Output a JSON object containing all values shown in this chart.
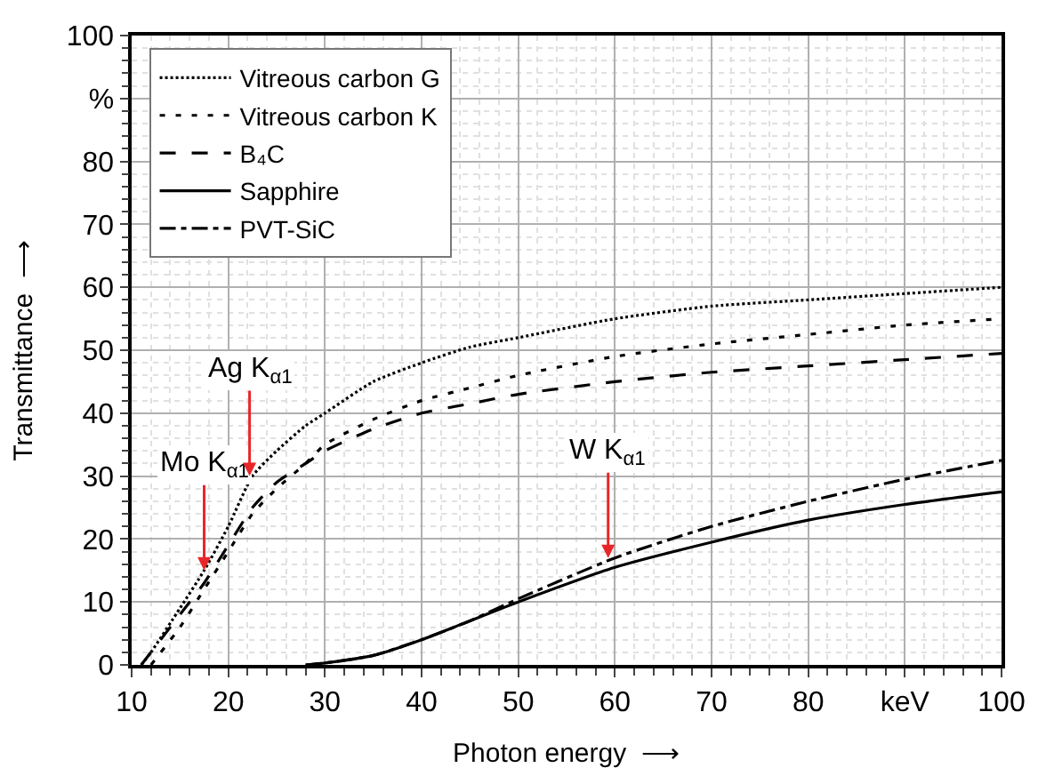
{
  "chart_data": {
    "type": "line",
    "xlabel": "Photon energy  ⟶",
    "ylabel": "Transmittance  ⟶",
    "x": [
      11,
      12,
      15,
      17.5,
      20,
      22.5,
      25,
      28,
      30,
      35,
      40,
      45,
      50,
      60,
      70,
      80,
      90,
      100
    ],
    "series": [
      {
        "name": "Vitreous carbon G",
        "color": "#000000",
        "line_style": "densely dotted",
        "values": [
          0,
          2,
          9,
          15,
          22,
          30,
          34,
          38,
          40,
          45,
          48,
          50.5,
          52,
          55,
          57,
          58,
          59,
          60
        ]
      },
      {
        "name": "Vitreous carbon K",
        "color": "#000000",
        "line_style": "dotted",
        "values": [
          null,
          0,
          6,
          12,
          18,
          24,
          28,
          32,
          35,
          39,
          42,
          44,
          46,
          49,
          51,
          52.5,
          54,
          55
        ]
      },
      {
        "name": "B₄C",
        "color": "#000000",
        "line_style": "dashed",
        "values": [
          0,
          2,
          8,
          13,
          19,
          25,
          29,
          32,
          34,
          37.5,
          40,
          41.5,
          43,
          45,
          46.5,
          47.5,
          48.5,
          49.5
        ]
      },
      {
        "name": "Sapphire",
        "color": "#000000",
        "line_style": "solid",
        "values": [
          null,
          null,
          null,
          null,
          null,
          null,
          null,
          0,
          0.3,
          1.5,
          4,
          7,
          10,
          15.5,
          19.5,
          23,
          25.5,
          27.5
        ]
      },
      {
        "name": "PVT-SiC",
        "color": "#000000",
        "line_style": "dashdot",
        "values": [
          null,
          null,
          null,
          null,
          null,
          null,
          null,
          0,
          0.3,
          1.5,
          4,
          7,
          10.5,
          17,
          22,
          26,
          29.5,
          32.5
        ]
      }
    ],
    "xlim": [
      10,
      100
    ],
    "xticks": [
      10,
      20,
      30,
      40,
      50,
      60,
      70,
      80,
      {
        "value": 90,
        "label": "keV"
      },
      100
    ],
    "ylim": [
      0,
      100
    ],
    "yticks": [
      0,
      10,
      20,
      30,
      40,
      50,
      60,
      70,
      80,
      {
        "value": 90,
        "label": "%"
      },
      100
    ],
    "annotations": [
      {
        "text": "Mo K$_{α1}$",
        "x": 17.5,
        "y": 15
      },
      {
        "text": "Ag K$_{α1}$",
        "x": 22.2,
        "y": 30
      },
      {
        "text": "W K$_{α1}$",
        "x": 59.3,
        "y": 17
      }
    ],
    "grid": true,
    "legend": "top left",
    "marker": "none"
  }
}
